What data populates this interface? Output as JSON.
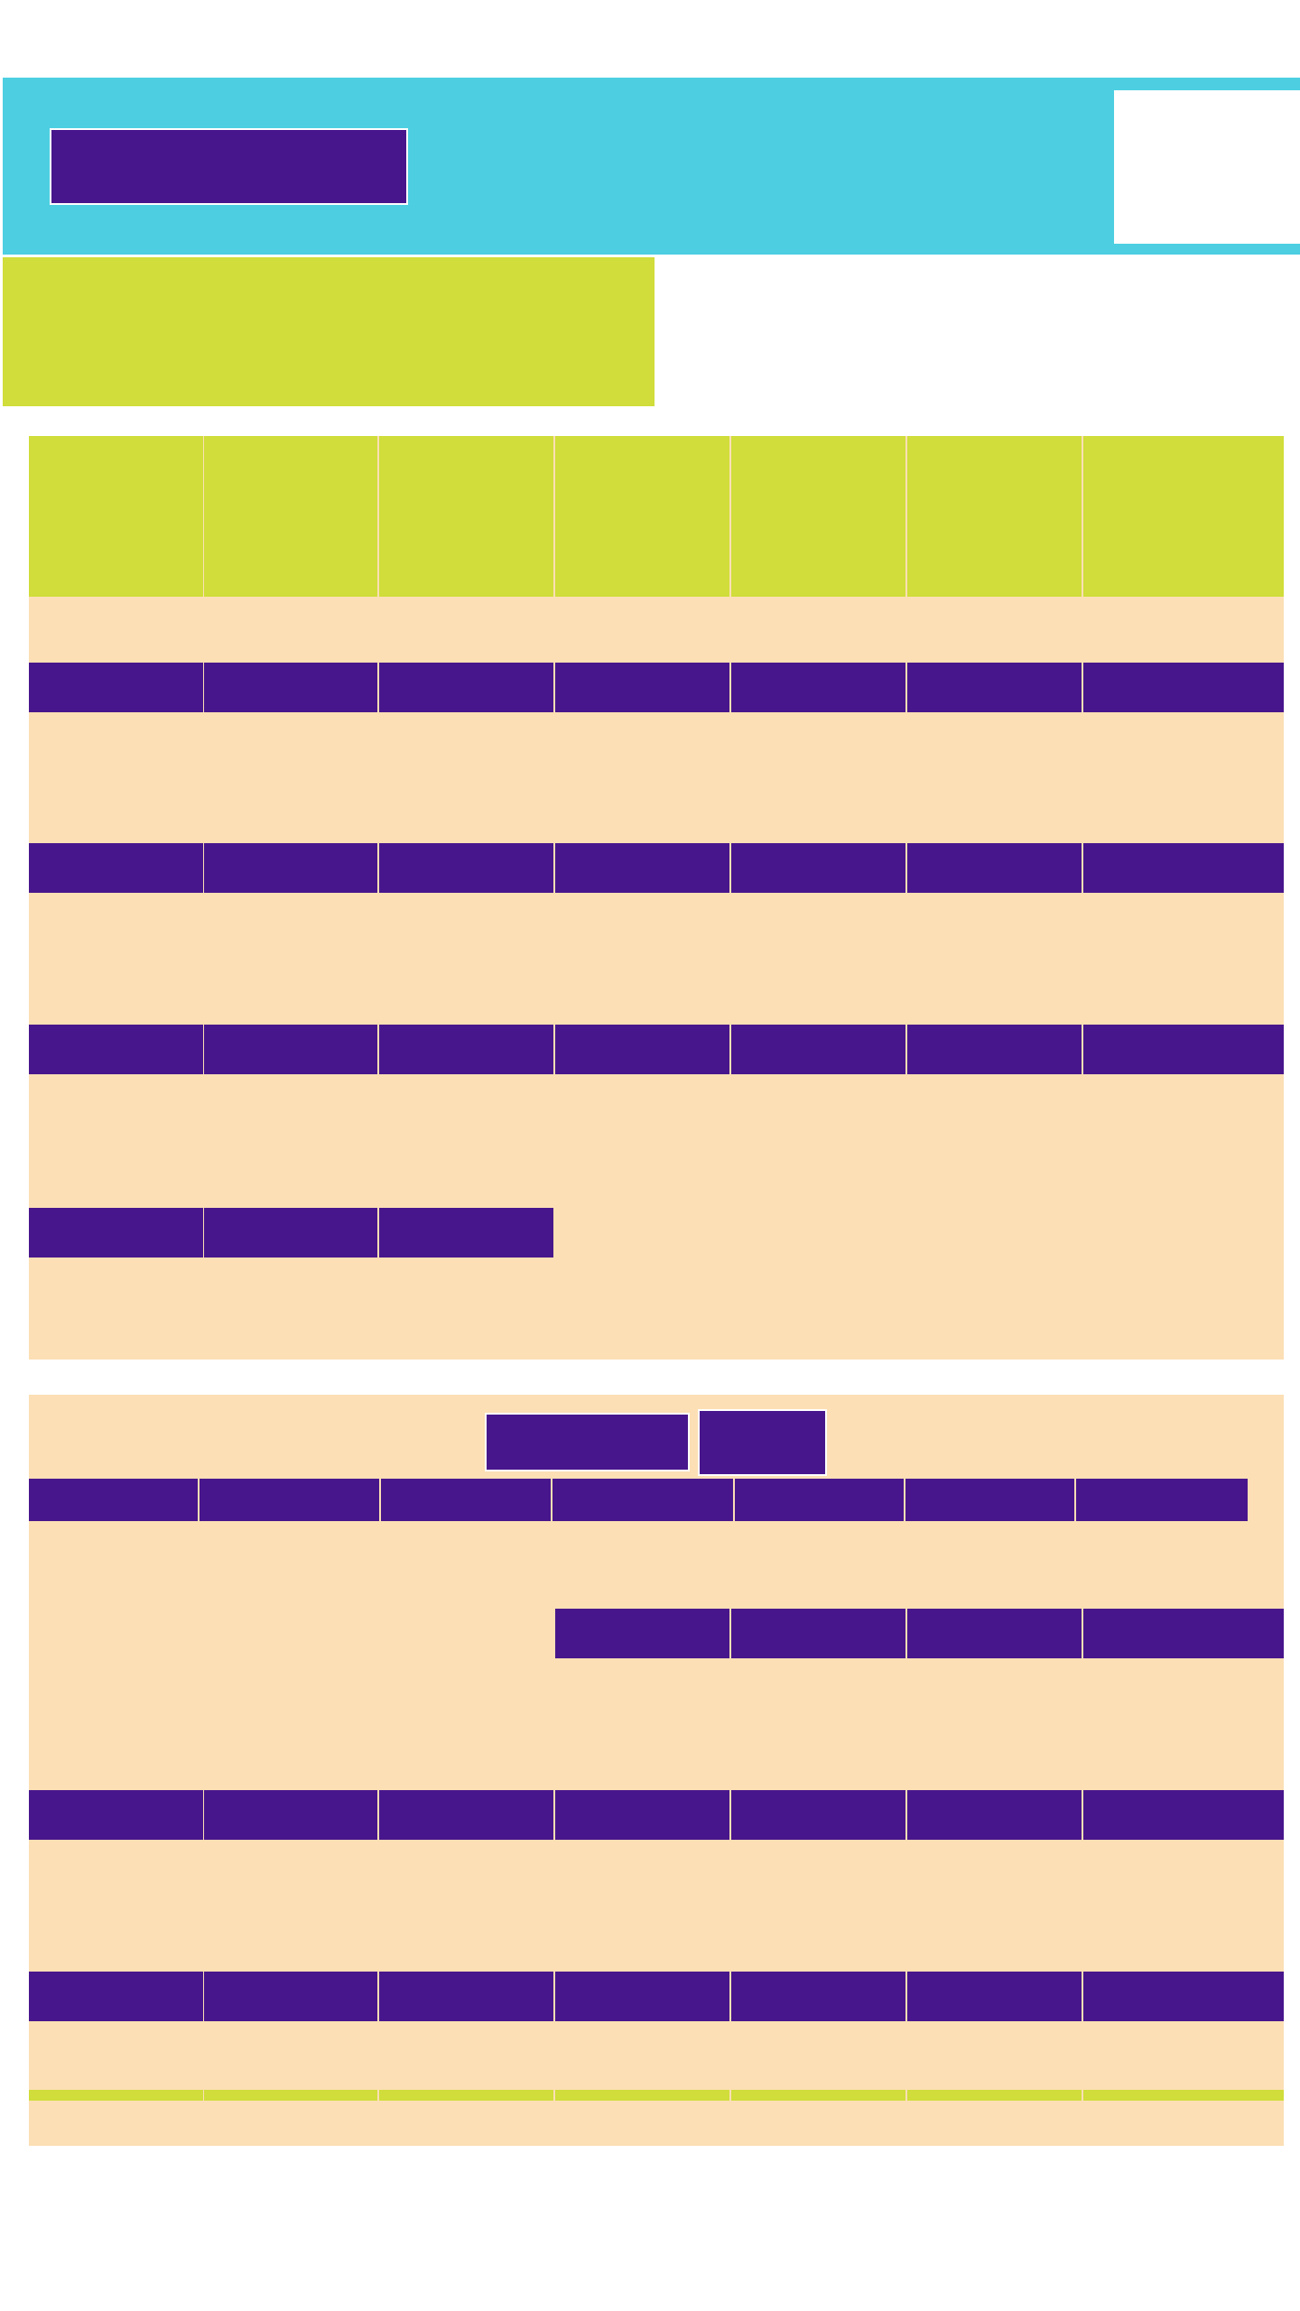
{
  "colors": {
    "cyan": "#4dcfe1",
    "lime": "#d0dd3a",
    "purple": "#48168c",
    "peach": "#fcdfb5"
  },
  "header": {
    "title_button_label": ""
  },
  "banner": {
    "text": ""
  },
  "calendar_top": {
    "weekday_headers": [
      "",
      "",
      "",
      "",
      "",
      "",
      ""
    ],
    "weeks": [
      [
        "",
        "",
        "",
        "",
        "",
        "",
        ""
      ],
      [
        "",
        "",
        "",
        "",
        "",
        "",
        ""
      ],
      [
        "",
        "",
        "",
        "",
        "",
        "",
        ""
      ],
      [
        "",
        "",
        ""
      ]
    ]
  },
  "calendar_bottom": {
    "month_label": "",
    "year_label": "",
    "weekday_headers": [
      "",
      "",
      "",
      "",
      "",
      "",
      ""
    ],
    "weeks": [
      [
        "",
        "",
        "",
        ""
      ],
      [
        "",
        "",
        "",
        "",
        "",
        "",
        ""
      ],
      [
        "",
        "",
        "",
        "",
        "",
        "",
        ""
      ]
    ],
    "footer_headers": [
      "",
      "",
      "",
      "",
      "",
      "",
      ""
    ]
  }
}
